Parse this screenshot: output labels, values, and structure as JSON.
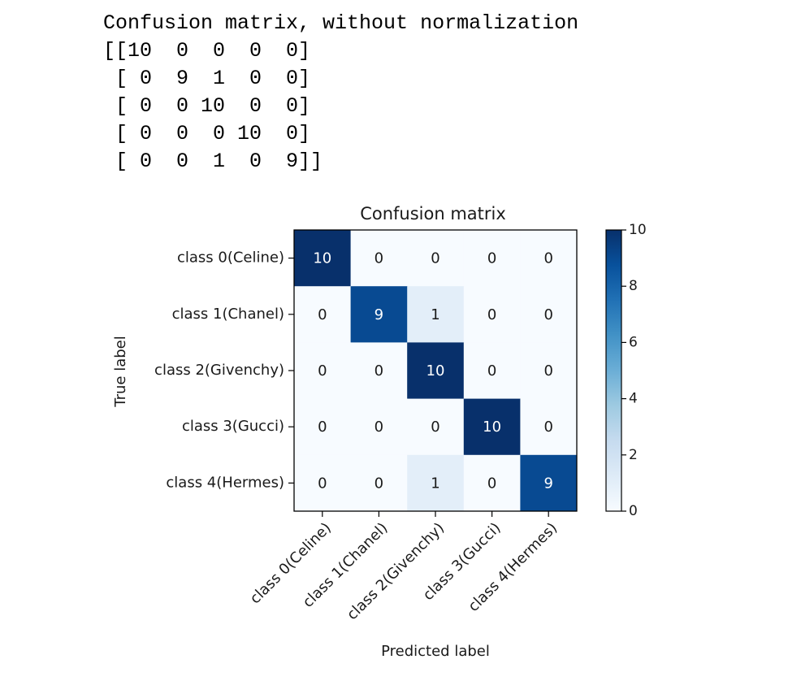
{
  "output": {
    "heading": "Confusion matrix, without normalization",
    "matrix_lines": [
      "[[10  0  0  0  0]",
      " [ 0  9  1  0  0]",
      " [ 0  0 10  0  0]",
      " [ 0  0  0 10  0]",
      " [ 0  0  1  0  9]]"
    ]
  },
  "chart_data": {
    "type": "heatmap",
    "title": "Confusion matrix",
    "xlabel": "Predicted label",
    "ylabel": "True label",
    "row_labels": [
      "class 0(Celine)",
      "class 1(Chanel)",
      "class 2(Givenchy)",
      "class 3(Gucci)",
      "class 4(Hermes)"
    ],
    "col_labels": [
      "class 0(Celine)",
      "class 1(Chanel)",
      "class 2(Givenchy)",
      "class 3(Gucci)",
      "class 4(Hermes)"
    ],
    "values": [
      [
        10,
        0,
        0,
        0,
        0
      ],
      [
        0,
        9,
        1,
        0,
        0
      ],
      [
        0,
        0,
        10,
        0,
        0
      ],
      [
        0,
        0,
        0,
        10,
        0
      ],
      [
        0,
        0,
        1,
        0,
        9
      ]
    ],
    "colormap": "Blues",
    "colorbar": {
      "min": 0,
      "max": 10,
      "ticks": [
        "0",
        "2",
        "4",
        "6",
        "8",
        "10"
      ]
    },
    "colors": {
      "low": "#f7fbff",
      "mid": "#c6dbef",
      "high": "#08306b",
      "text_light": "#ffffff",
      "text_dark": "#1a1a1a"
    }
  }
}
